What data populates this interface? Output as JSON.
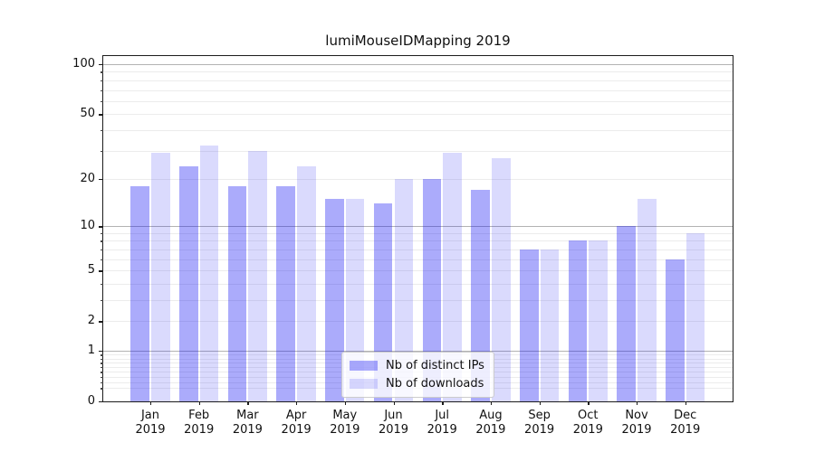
{
  "chart_data": {
    "type": "bar",
    "title": "lumiMouseIDMapping 2019",
    "categories": [
      "Jan",
      "Feb",
      "Mar",
      "Apr",
      "May",
      "Jun",
      "Jul",
      "Aug",
      "Sep",
      "Oct",
      "Nov",
      "Dec"
    ],
    "year": "2019",
    "series": [
      {
        "name": "Nb of distinct IPs",
        "color": "rgba(12,12,242,0.345)",
        "values": [
          18,
          24,
          18,
          18,
          15,
          14,
          20,
          17,
          7,
          8,
          10,
          6
        ]
      },
      {
        "name": "Nb of downloads",
        "color": "rgba(12,12,242,0.152)",
        "values": [
          29,
          32,
          30,
          24,
          15,
          20,
          29,
          27,
          7,
          8,
          15,
          9
        ]
      }
    ],
    "y_scale": "log1p",
    "ylim": [
      0,
      112
    ],
    "y_ticks": [
      0,
      1,
      2,
      5,
      10,
      20,
      50,
      100
    ],
    "y_major_gridlines": [
      1,
      10,
      100
    ],
    "y_minor_ticks": [
      0.2,
      0.3,
      0.4,
      0.5,
      0.6,
      0.7,
      0.8,
      0.9,
      2,
      3,
      4,
      5,
      6,
      7,
      8,
      9,
      20,
      30,
      40,
      50,
      60,
      70,
      80,
      90
    ],
    "grid": true,
    "legend_position": "lower center",
    "axis_color": "#1c1c1c",
    "major_grid_color": "#b3b3b3",
    "minor_grid_color": "#ececec"
  }
}
